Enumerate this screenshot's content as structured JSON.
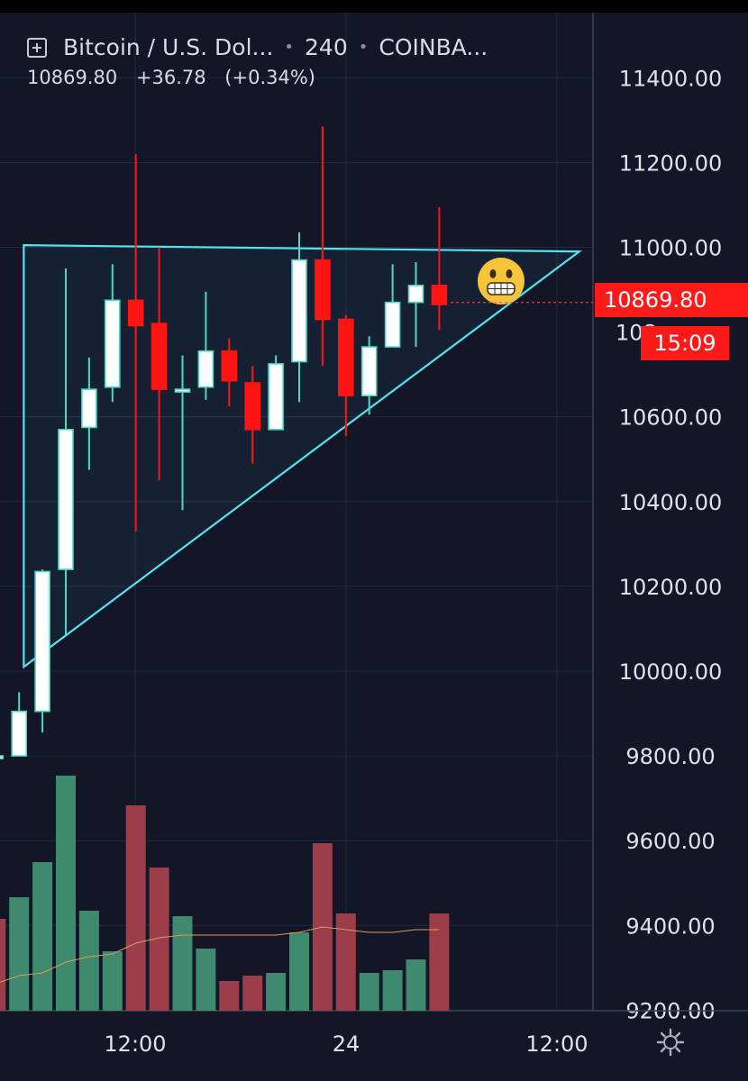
{
  "header": {
    "symbol_label": "Bitcoin / U.S. Dol...",
    "interval": "240",
    "exchange": "COINBA...",
    "last_price": "10869.80",
    "change": "+36.78",
    "change_pct": "(+0.34%)"
  },
  "badges": {
    "current_price": "10869.80",
    "countdown": "15:09"
  },
  "colors": {
    "background": "#121627",
    "grid": "#242a3c",
    "axis_text": "#e0e2e8",
    "candle_up": "#ffffff",
    "candle_up_border": "#4fd6c5",
    "candle_down": "#ff1414",
    "volume_up": "#3f8a6e",
    "volume_down": "#9c3d4a",
    "triangle": "#52e3f0",
    "badge": "#ff1a1a"
  },
  "icons": [
    "add-symbol-icon",
    "grimacing-face-emoji",
    "gear-icon"
  ],
  "chart_data": {
    "type": "candlestick",
    "price_ticks": [
      "11400.00",
      "11200.00",
      "11000.00",
      "10600.00",
      "10400.00",
      "10200.00",
      "10000.00",
      "9800.00",
      "9600.00",
      "9400.00",
      "9200.00"
    ],
    "time_ticks": [
      "12:00",
      "24",
      "12:00"
    ],
    "ylim": [
      9150,
      11580
    ],
    "candles": [
      {
        "o": 9800,
        "h": 9910,
        "l": 9740,
        "c": 9800
      },
      {
        "o": 9800,
        "h": 9950,
        "l": 9800,
        "c": 9905
      },
      {
        "o": 9905,
        "h": 10240,
        "l": 9855,
        "c": 10235
      },
      {
        "o": 10240,
        "h": 10950,
        "l": 10085,
        "c": 10570
      },
      {
        "o": 10575,
        "h": 10740,
        "l": 10475,
        "c": 10665
      },
      {
        "o": 10670,
        "h": 10960,
        "l": 10635,
        "c": 10875
      },
      {
        "o": 10875,
        "h": 11220,
        "l": 10330,
        "c": 10815
      },
      {
        "o": 10820,
        "h": 11000,
        "l": 10450,
        "c": 10665
      },
      {
        "o": 10665,
        "h": 10745,
        "l": 10380,
        "c": 10665
      },
      {
        "o": 10670,
        "h": 10895,
        "l": 10640,
        "c": 10755
      },
      {
        "o": 10755,
        "h": 10785,
        "l": 10625,
        "c": 10685
      },
      {
        "o": 10680,
        "h": 10720,
        "l": 10490,
        "c": 10570
      },
      {
        "o": 10570,
        "h": 10745,
        "l": 10570,
        "c": 10725
      },
      {
        "o": 10730,
        "h": 11035,
        "l": 10635,
        "c": 10970
      },
      {
        "o": 10970,
        "h": 11285,
        "l": 10720,
        "c": 10830
      },
      {
        "o": 10830,
        "h": 10840,
        "l": 10555,
        "c": 10650
      },
      {
        "o": 10650,
        "h": 10790,
        "l": 10605,
        "c": 10765
      },
      {
        "o": 10765,
        "h": 10960,
        "l": 10765,
        "c": 10870
      },
      {
        "o": 10870,
        "h": 10965,
        "l": 10765,
        "c": 10910
      },
      {
        "o": 10910,
        "h": 11095,
        "l": 10805,
        "c": 10865
      }
    ],
    "volume": [
      {
        "v": 34,
        "up": false
      },
      {
        "v": 42,
        "up": true
      },
      {
        "v": 55,
        "up": true
      },
      {
        "v": 87,
        "up": true
      },
      {
        "v": 37,
        "up": true
      },
      {
        "v": 22,
        "up": true
      },
      {
        "v": 76,
        "up": false
      },
      {
        "v": 53,
        "up": false
      },
      {
        "v": 35,
        "up": true
      },
      {
        "v": 23,
        "up": true
      },
      {
        "v": 11,
        "up": false
      },
      {
        "v": 13,
        "up": false
      },
      {
        "v": 14,
        "up": true
      },
      {
        "v": 29,
        "up": true
      },
      {
        "v": 62,
        "up": false
      },
      {
        "v": 36,
        "up": false
      },
      {
        "v": 14,
        "up": true
      },
      {
        "v": 15,
        "up": true
      },
      {
        "v": 19,
        "up": true
      },
      {
        "v": 36,
        "up": false
      }
    ],
    "volume_ma": [
      10,
      13,
      14,
      18,
      20,
      21,
      25,
      27,
      28,
      28,
      28,
      28,
      28,
      29,
      31,
      30,
      29,
      29,
      30,
      30
    ],
    "triangle": {
      "apex_top": {
        "candle": 1.2,
        "price": 11005
      },
      "base": {
        "candle": 1.2,
        "price": 10010
      },
      "tip": {
        "candle": 25.0,
        "price": 10990
      }
    }
  }
}
